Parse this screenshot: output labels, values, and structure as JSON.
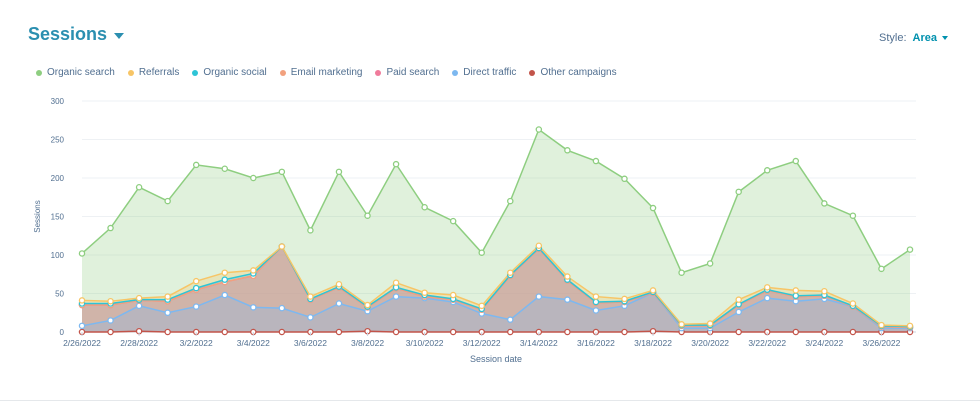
{
  "header": {
    "title": "Sessions"
  },
  "style_selector": {
    "label": "Style:",
    "value": "Area"
  },
  "colors": {
    "Organic search": "#8ece80",
    "Referrals": "#f7c566",
    "Organic social": "#2ec4d6",
    "Email marketing": "#f2a17e",
    "Paid search": "#f07b9b",
    "Direct traffic": "#7db8f0",
    "Other campaigns": "#c2544a"
  },
  "chart_data": {
    "type": "area",
    "stacked": true,
    "xlabel": "Session date",
    "ylabel": "Sessions",
    "ylim": [
      0,
      300
    ],
    "yticks": [
      0,
      50,
      100,
      150,
      200,
      250,
      300
    ],
    "x": [
      "2/26/2022",
      "2/27/2022",
      "2/28/2022",
      "3/1/2022",
      "3/2/2022",
      "3/3/2022",
      "3/4/2022",
      "3/5/2022",
      "3/6/2022",
      "3/7/2022",
      "3/8/2022",
      "3/9/2022",
      "3/10/2022",
      "3/11/2022",
      "3/12/2022",
      "3/13/2022",
      "3/14/2022",
      "3/15/2022",
      "3/16/2022",
      "3/17/2022",
      "3/18/2022",
      "3/19/2022",
      "3/20/2022",
      "3/21/2022",
      "3/22/2022",
      "3/23/2022",
      "3/24/2022",
      "3/25/2022",
      "3/26/2022",
      "3/27/2022"
    ],
    "x_tick_labels": [
      "2/26/2022",
      "2/28/2022",
      "3/2/2022",
      "3/4/2022",
      "3/6/2022",
      "3/8/2022",
      "3/10/2022",
      "3/12/2022",
      "3/14/2022",
      "3/16/2022",
      "3/18/2022",
      "3/20/2022",
      "3/22/2022",
      "3/24/2022",
      "3/26/2022"
    ],
    "legend_position": "top-left",
    "grid": true,
    "series": [
      {
        "name": "Other campaigns",
        "values": [
          0,
          0,
          1,
          0,
          0,
          0,
          0,
          0,
          0,
          0,
          1,
          0,
          0,
          0,
          0,
          0,
          0,
          0,
          0,
          0,
          1,
          0,
          0,
          0,
          0,
          0,
          0,
          0,
          0,
          0
        ]
      },
      {
        "name": "Direct traffic",
        "values": [
          8,
          15,
          33,
          25,
          33,
          48,
          32,
          31,
          19,
          37,
          26,
          46,
          44,
          39,
          24,
          16,
          46,
          42,
          28,
          34,
          50,
          5,
          5,
          26,
          44,
          40,
          43,
          33,
          5,
          5
        ]
      },
      {
        "name": "Paid search",
        "values": [
          27,
          20,
          7,
          15,
          22,
          17,
          41,
          80,
          23,
          21,
          5,
          11,
          2,
          3,
          5,
          57,
          62,
          25,
          10,
          5,
          0,
          3,
          3,
          9,
          10,
          6,
          4,
          0,
          2,
          1
        ]
      },
      {
        "name": "Email marketing",
        "values": [
          0,
          0,
          0,
          0,
          0,
          0,
          0,
          0,
          0,
          0,
          0,
          0,
          0,
          0,
          0,
          0,
          0,
          0,
          0,
          0,
          0,
          0,
          0,
          0,
          0,
          0,
          0,
          0,
          0,
          0
        ]
      },
      {
        "name": "Organic social",
        "values": [
          2,
          2,
          1,
          2,
          2,
          3,
          3,
          0,
          1,
          1,
          1,
          1,
          2,
          1,
          1,
          1,
          1,
          1,
          1,
          1,
          1,
          1,
          1,
          1,
          1,
          1,
          1,
          1,
          1,
          1
        ]
      },
      {
        "name": "Referrals",
        "values": [
          4,
          3,
          2,
          4,
          9,
          9,
          4,
          0,
          3,
          3,
          2,
          6,
          3,
          5,
          4,
          3,
          3,
          4,
          7,
          3,
          2,
          1,
          2,
          6,
          3,
          7,
          5,
          3,
          1,
          1
        ]
      },
      {
        "name": "Organic search",
        "values": [
          61,
          95,
          144,
          124,
          151,
          135,
          120,
          97,
          86,
          146,
          116,
          154,
          111,
          96,
          69,
          93,
          151,
          164,
          176,
          156,
          107,
          67,
          78,
          140,
          152,
          168,
          114,
          114,
          73,
          99
        ]
      }
    ]
  }
}
